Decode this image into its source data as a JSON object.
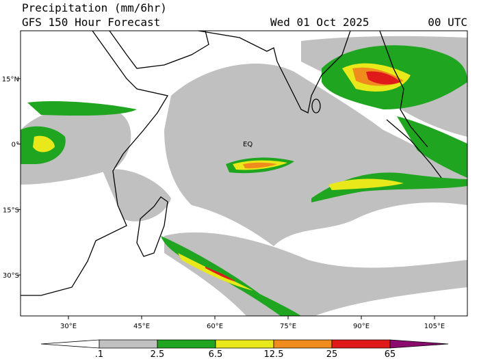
{
  "header": {
    "title": "Precipitation (mm/6hr)",
    "subtitle": "GFS 150 Hour Forecast",
    "date": "Wed 01 Oct 2025",
    "time": "00 UTC"
  },
  "map": {
    "x_labels": [
      "30°E",
      "45°E",
      "60°E",
      "75°E",
      "90°E",
      "105°E"
    ],
    "y_labels": [
      "15°N",
      "0°",
      "15°S",
      "30°S"
    ],
    "annotation": "EQ"
  },
  "colorbar": {
    "labels": [
      ".1",
      "2.5",
      "6.5",
      "12.5",
      "25",
      "65"
    ],
    "colors": [
      "#ffffff",
      "#c0c0c0",
      "#1fa51f",
      "#e8e81a",
      "#f08c1e",
      "#e01a1a",
      "#8b0a6e"
    ]
  }
}
